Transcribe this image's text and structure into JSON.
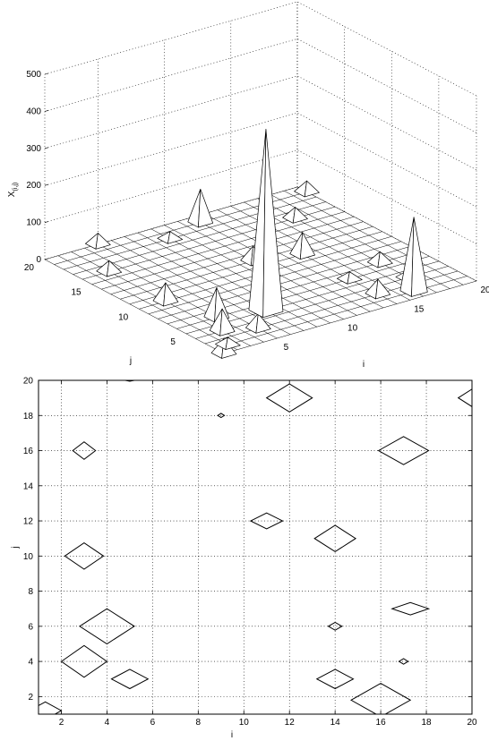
{
  "chart_data": [
    {
      "type": "surface",
      "xlabel": "i",
      "ylabel": "j",
      "zlabel": "X",
      "zlabel_sub": "(i,j)",
      "xlim": [
        1,
        20
      ],
      "ylim": [
        1,
        20
      ],
      "zlim": [
        0,
        500
      ],
      "x_ticks": [
        5,
        10,
        15,
        20
      ],
      "y_ticks": [
        5,
        10,
        15,
        20
      ],
      "z_ticks": [
        0,
        100,
        200,
        300,
        400,
        500
      ],
      "peaks": [
        {
          "i": 1,
          "j": 1,
          "value": 40
        },
        {
          "i": 2,
          "j": 2,
          "value": 20
        },
        {
          "i": 3,
          "j": 4,
          "value": 60
        },
        {
          "i": 4,
          "j": 6,
          "value": 80
        },
        {
          "i": 5,
          "j": 3,
          "value": 40
        },
        {
          "i": 5,
          "j": 20,
          "value": 30
        },
        {
          "i": 3,
          "j": 10,
          "value": 50
        },
        {
          "i": 3,
          "j": 16,
          "value": 30
        },
        {
          "i": 9,
          "j": 18,
          "value": 20
        },
        {
          "i": 11,
          "j": 12,
          "value": 40
        },
        {
          "i": 12,
          "j": 19,
          "value": 90
        },
        {
          "i": 14,
          "j": 11,
          "value": 60
        },
        {
          "i": 14,
          "j": 6,
          "value": 20
        },
        {
          "i": 14,
          "j": 3,
          "value": 40
        },
        {
          "i": 16,
          "j": 2,
          "value": 200
        },
        {
          "i": 17,
          "j": 16,
          "value": 30
        },
        {
          "i": 17,
          "j": 7,
          "value": 30
        },
        {
          "i": 17,
          "j": 4,
          "value": 20
        },
        {
          "i": 20,
          "j": 19,
          "value": 30
        },
        {
          "i": 7,
          "j": 5,
          "value": 490
        }
      ]
    },
    {
      "type": "contour",
      "xlabel": "i",
      "ylabel": "j",
      "xlim": [
        1,
        20
      ],
      "ylim": [
        1,
        20
      ],
      "x_ticks": [
        2,
        4,
        6,
        8,
        10,
        12,
        14,
        16,
        18,
        20
      ],
      "y_ticks": [
        2,
        4,
        6,
        8,
        10,
        12,
        14,
        16,
        18,
        20
      ],
      "grid": true,
      "contours": [
        {
          "i": 1.3,
          "j": 1.2,
          "rx": 0.7,
          "ry": 0.5
        },
        {
          "i": 3,
          "j": 4,
          "rx": 1,
          "ry": 0.9
        },
        {
          "i": 4,
          "j": 6,
          "rx": 1.2,
          "ry": 1
        },
        {
          "i": 5,
          "j": 3,
          "rx": 0.8,
          "ry": 0.55
        },
        {
          "i": 3,
          "j": 10,
          "rx": 0.85,
          "ry": 0.75
        },
        {
          "i": 3,
          "j": 16,
          "rx": 0.5,
          "ry": 0.5
        },
        {
          "i": 9,
          "j": 18,
          "rx": 0.15,
          "ry": 0.12
        },
        {
          "i": 11,
          "j": 12,
          "rx": 0.7,
          "ry": 0.45
        },
        {
          "i": 12,
          "j": 19,
          "rx": 1,
          "ry": 0.8
        },
        {
          "i": 14,
          "j": 11,
          "rx": 0.9,
          "ry": 0.75
        },
        {
          "i": 14,
          "j": 6,
          "rx": 0.3,
          "ry": 0.22
        },
        {
          "i": 14,
          "j": 3,
          "rx": 0.8,
          "ry": 0.55
        },
        {
          "i": 16,
          "j": 1.8,
          "rx": 1.3,
          "ry": 0.95
        },
        {
          "i": 17,
          "j": 16,
          "rx": 1.1,
          "ry": 0.8
        },
        {
          "i": 17.3,
          "j": 7,
          "rx": 0.8,
          "ry": 0.35
        },
        {
          "i": 17,
          "j": 4,
          "rx": 0.2,
          "ry": 0.16
        },
        {
          "i": 20,
          "j": 19,
          "rx": 0.6,
          "ry": 0.5
        },
        {
          "i": 5,
          "j": 20,
          "rx": 0.2,
          "ry": 0.05
        }
      ]
    }
  ]
}
